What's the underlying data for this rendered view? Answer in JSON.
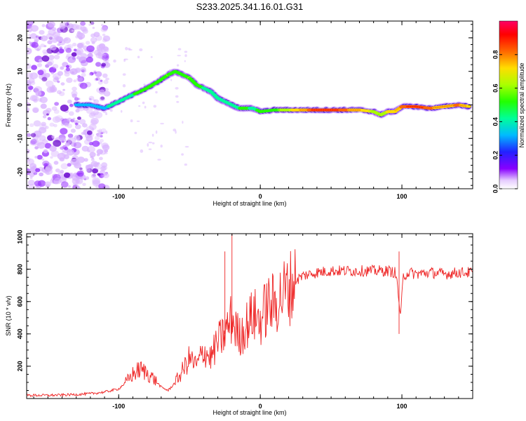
{
  "title": "S233.2025.341.16.01.G31",
  "chart_data": [
    {
      "type": "heatmap",
      "xlabel": "Height of straight line (km)",
      "ylabel": "Frequency (Hz)",
      "xlim": [
        -165,
        150
      ],
      "ylim": [
        -25,
        25
      ],
      "xticks": [
        -100,
        0,
        100
      ],
      "yticks": [
        20,
        10,
        0,
        -10,
        -20
      ],
      "colorbar": {
        "label": "Normalized spectral amplitude",
        "ticks": [
          0.0,
          0.2,
          0.4,
          0.6,
          0.8
        ],
        "range": [
          0,
          1
        ],
        "palette": "rainbow (violet-blue-cyan-green-yellow-red-magenta)"
      },
      "ridge": {
        "x": [
          -130,
          -120,
          -110,
          -100,
          -90,
          -80,
          -72,
          -65,
          -60,
          -55,
          -50,
          -45,
          -40,
          -35,
          -30,
          -25,
          -20,
          -15,
          -10,
          -5,
          0,
          10,
          20,
          30,
          40,
          50,
          60,
          70,
          80,
          85,
          90,
          95,
          100,
          110,
          120,
          130,
          140,
          148
        ],
        "freq": [
          0,
          0,
          -1,
          1,
          3,
          5,
          7,
          9,
          10,
          9,
          8,
          6,
          5,
          4,
          2,
          1,
          0,
          -1,
          -1,
          -1,
          -2,
          -1.5,
          -1.5,
          -1.5,
          -1.5,
          -1.5,
          -1.5,
          -1.5,
          -2,
          -3,
          -2,
          -2,
          -0.5,
          -0.5,
          -1,
          -0.5,
          0,
          -0.5
        ],
        "amplitude": [
          0.2,
          0.25,
          0.3,
          0.35,
          0.45,
          0.5,
          0.55,
          0.6,
          0.5,
          0.55,
          0.6,
          0.5,
          0.45,
          0.4,
          0.45,
          0.35,
          0.4,
          0.45,
          0.5,
          0.4,
          0.5,
          0.55,
          0.7,
          0.85,
          0.95,
          0.95,
          0.9,
          0.85,
          0.7,
          0.6,
          0.75,
          0.8,
          0.9,
          0.95,
          0.9,
          0.85,
          0.9,
          0.8
        ]
      }
    },
    {
      "type": "line",
      "xlabel": "Height of straight line (km)",
      "ylabel": "SNR (10 * v/v)",
      "xlim": [
        -165,
        150
      ],
      "ylim": [
        0,
        1020
      ],
      "xticks": [
        -100,
        0,
        100
      ],
      "yticks": [
        200,
        400,
        600,
        800,
        1000
      ],
      "series": [
        {
          "name": "SNR",
          "color": "#ee2222",
          "x": [
            -165,
            -150,
            -140,
            -130,
            -120,
            -110,
            -100,
            -95,
            -90,
            -85,
            -80,
            -75,
            -70,
            -65,
            -60,
            -55,
            -50,
            -45,
            -40,
            -35,
            -30,
            -25,
            -20,
            -15,
            -10,
            -5,
            0,
            5,
            10,
            15,
            20,
            25,
            30,
            40,
            50,
            60,
            70,
            80,
            90,
            95,
            97,
            99,
            101,
            105,
            110,
            120,
            130,
            140,
            150
          ],
          "y": [
            20,
            20,
            22,
            25,
            30,
            40,
            60,
            100,
            150,
            180,
            160,
            120,
            70,
            50,
            100,
            170,
            250,
            200,
            300,
            250,
            350,
            400,
            500,
            380,
            450,
            520,
            480,
            580,
            580,
            640,
            680,
            730,
            760,
            780,
            790,
            790,
            790,
            790,
            790,
            780,
            700,
            490,
            760,
            780,
            770,
            780,
            770,
            780,
            780
          ]
        }
      ],
      "annotations": [
        {
          "x": -20,
          "y": 1020,
          "label": ""
        },
        {
          "x": -25,
          "y": 910,
          "label": ""
        },
        {
          "x": 98,
          "y": 910,
          "label": ""
        }
      ]
    }
  ]
}
